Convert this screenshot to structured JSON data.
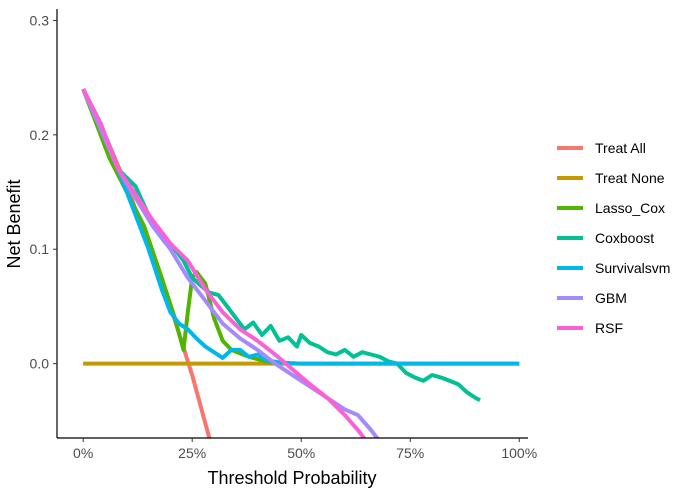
{
  "chart_data": {
    "type": "line",
    "xlabel": "Threshold Probability",
    "ylabel": "Net Benefit",
    "xlim": [
      -0.06,
      1.02
    ],
    "ylim": [
      -0.065,
      0.31
    ],
    "xticks": [
      0,
      0.25,
      0.5,
      0.75,
      1.0
    ],
    "xtick_labels": [
      "0%",
      "25%",
      "50%",
      "75%",
      "100%"
    ],
    "yticks": [
      0.0,
      0.1,
      0.2,
      0.3
    ],
    "ytick_labels": [
      "0.0",
      "0.1",
      "0.2",
      "0.3"
    ],
    "grid": false,
    "legend_position": "right",
    "series": [
      {
        "name": "Treat All",
        "color": "#F8766D",
        "x": [
          0,
          0.05,
          0.1,
          0.15,
          0.2,
          0.25,
          0.3
        ],
        "y": [
          0.24,
          0.2,
          0.155,
          0.105,
          0.05,
          -0.01,
          -0.08
        ]
      },
      {
        "name": "Treat None",
        "color": "#C49A00",
        "x": [
          0,
          1.0
        ],
        "y": [
          0,
          0
        ]
      },
      {
        "name": "Lasso_Cox",
        "color": "#53B400",
        "x": [
          0,
          0.03,
          0.06,
          0.1,
          0.14,
          0.18,
          0.21,
          0.23,
          0.24,
          0.25,
          0.26,
          0.28,
          0.3,
          0.32,
          0.34,
          0.38,
          0.42,
          0.45
        ],
        "y": [
          0.24,
          0.21,
          0.18,
          0.15,
          0.12,
          0.075,
          0.04,
          0.012,
          0.045,
          0.075,
          0.08,
          0.07,
          0.04,
          0.02,
          0.012,
          0.006,
          0.002,
          0.0
        ]
      },
      {
        "name": "Coxboost",
        "color": "#00C094",
        "x": [
          0,
          0.04,
          0.08,
          0.12,
          0.15,
          0.17,
          0.19,
          0.21,
          0.23,
          0.25,
          0.27,
          0.29,
          0.31,
          0.33,
          0.35,
          0.37,
          0.39,
          0.41,
          0.43,
          0.45,
          0.47,
          0.49,
          0.5,
          0.52,
          0.54,
          0.56,
          0.58,
          0.6,
          0.62,
          0.64,
          0.66,
          0.68,
          0.7,
          0.72,
          0.74,
          0.76,
          0.78,
          0.8,
          0.82,
          0.84,
          0.86,
          0.88,
          0.9,
          0.91
        ],
        "y": [
          0.24,
          0.205,
          0.17,
          0.155,
          0.13,
          0.115,
          0.105,
          0.1,
          0.09,
          0.075,
          0.068,
          0.062,
          0.06,
          0.05,
          0.04,
          0.03,
          0.036,
          0.025,
          0.033,
          0.02,
          0.023,
          0.015,
          0.025,
          0.018,
          0.015,
          0.01,
          0.008,
          0.012,
          0.006,
          0.01,
          0.008,
          0.006,
          0.002,
          0.0,
          -0.008,
          -0.012,
          -0.015,
          -0.01,
          -0.012,
          -0.015,
          -0.018,
          -0.025,
          -0.03,
          -0.032
        ]
      },
      {
        "name": "Survivalsvm",
        "color": "#00B6EB",
        "x": [
          0,
          0.04,
          0.08,
          0.12,
          0.15,
          0.18,
          0.2,
          0.22,
          0.24,
          0.26,
          0.28,
          0.3,
          0.32,
          0.34,
          0.36,
          0.38,
          0.4,
          0.42,
          0.45,
          0.5,
          0.6,
          0.7,
          0.8,
          0.9,
          1.0
        ],
        "y": [
          0.24,
          0.21,
          0.17,
          0.13,
          0.1,
          0.065,
          0.045,
          0.035,
          0.03,
          0.022,
          0.015,
          0.01,
          0.005,
          0.012,
          0.012,
          0.006,
          0.008,
          0.003,
          0.001,
          0.0,
          0.0,
          0.0,
          0.0,
          0.0,
          0.0
        ]
      },
      {
        "name": "GBM",
        "color": "#A58AFF",
        "x": [
          0,
          0.04,
          0.08,
          0.12,
          0.16,
          0.2,
          0.24,
          0.28,
          0.32,
          0.36,
          0.4,
          0.44,
          0.48,
          0.52,
          0.56,
          0.6,
          0.63,
          0.66,
          0.68
        ],
        "y": [
          0.24,
          0.205,
          0.17,
          0.145,
          0.12,
          0.1,
          0.075,
          0.055,
          0.035,
          0.022,
          0.012,
          0.0,
          -0.01,
          -0.02,
          -0.03,
          -0.04,
          -0.045,
          -0.058,
          -0.068
        ]
      },
      {
        "name": "RSF",
        "color": "#FB61D7",
        "x": [
          0,
          0.04,
          0.08,
          0.12,
          0.16,
          0.2,
          0.24,
          0.28,
          0.32,
          0.36,
          0.4,
          0.44,
          0.48,
          0.52,
          0.56,
          0.6,
          0.63,
          0.65
        ],
        "y": [
          0.24,
          0.21,
          0.17,
          0.148,
          0.125,
          0.105,
          0.09,
          0.065,
          0.045,
          0.03,
          0.02,
          0.008,
          -0.005,
          -0.018,
          -0.03,
          -0.045,
          -0.058,
          -0.068
        ]
      }
    ]
  }
}
